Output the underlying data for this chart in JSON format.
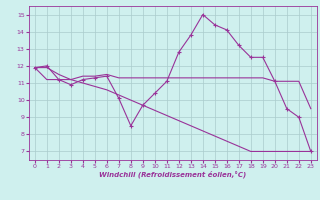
{
  "background_color": "#cff0ee",
  "grid_color": "#aacccc",
  "line_color": "#993399",
  "xlabel": "Windchill (Refroidissement éolien,°C)",
  "xlim": [
    -0.5,
    23.5
  ],
  "ylim": [
    6.5,
    15.5
  ],
  "yticks": [
    7,
    8,
    9,
    10,
    11,
    12,
    13,
    14,
    15
  ],
  "xticks": [
    0,
    1,
    2,
    3,
    4,
    5,
    6,
    7,
    8,
    9,
    10,
    11,
    12,
    13,
    14,
    15,
    16,
    17,
    18,
    19,
    20,
    21,
    22,
    23
  ],
  "line1_x": [
    0,
    1,
    2,
    3,
    4,
    5,
    6,
    7,
    8,
    9,
    10,
    11,
    12,
    13,
    14,
    15,
    16,
    17,
    18,
    19,
    20,
    21,
    22,
    23
  ],
  "line1_y": [
    11.9,
    12.0,
    11.2,
    10.9,
    11.2,
    11.3,
    11.4,
    10.1,
    8.5,
    9.7,
    10.4,
    11.1,
    12.8,
    13.8,
    15.0,
    14.4,
    14.1,
    13.2,
    12.5,
    12.5,
    11.1,
    9.5,
    9.0,
    7.0
  ],
  "line2_x": [
    0,
    1,
    2,
    3,
    4,
    5,
    6,
    7,
    8,
    9,
    10,
    11,
    12,
    13,
    14,
    15,
    16,
    17,
    18,
    19,
    20,
    21,
    22,
    23
  ],
  "line2_y": [
    11.9,
    11.2,
    11.2,
    11.2,
    11.4,
    11.4,
    11.5,
    11.3,
    11.3,
    11.3,
    11.3,
    11.3,
    11.3,
    11.3,
    11.3,
    11.3,
    11.3,
    11.3,
    11.3,
    11.3,
    11.1,
    11.1,
    11.1,
    9.5
  ],
  "line3_x": [
    0,
    1,
    2,
    3,
    4,
    5,
    6,
    7,
    8,
    9,
    10,
    11,
    12,
    13,
    14,
    15,
    16,
    17,
    18,
    19,
    20,
    21,
    22,
    23
  ],
  "line3_y": [
    11.9,
    11.9,
    11.5,
    11.2,
    11.0,
    10.8,
    10.6,
    10.3,
    10.0,
    9.7,
    9.4,
    9.1,
    8.8,
    8.5,
    8.2,
    7.9,
    7.6,
    7.3,
    7.0,
    7.0,
    7.0,
    7.0,
    7.0,
    7.0
  ]
}
